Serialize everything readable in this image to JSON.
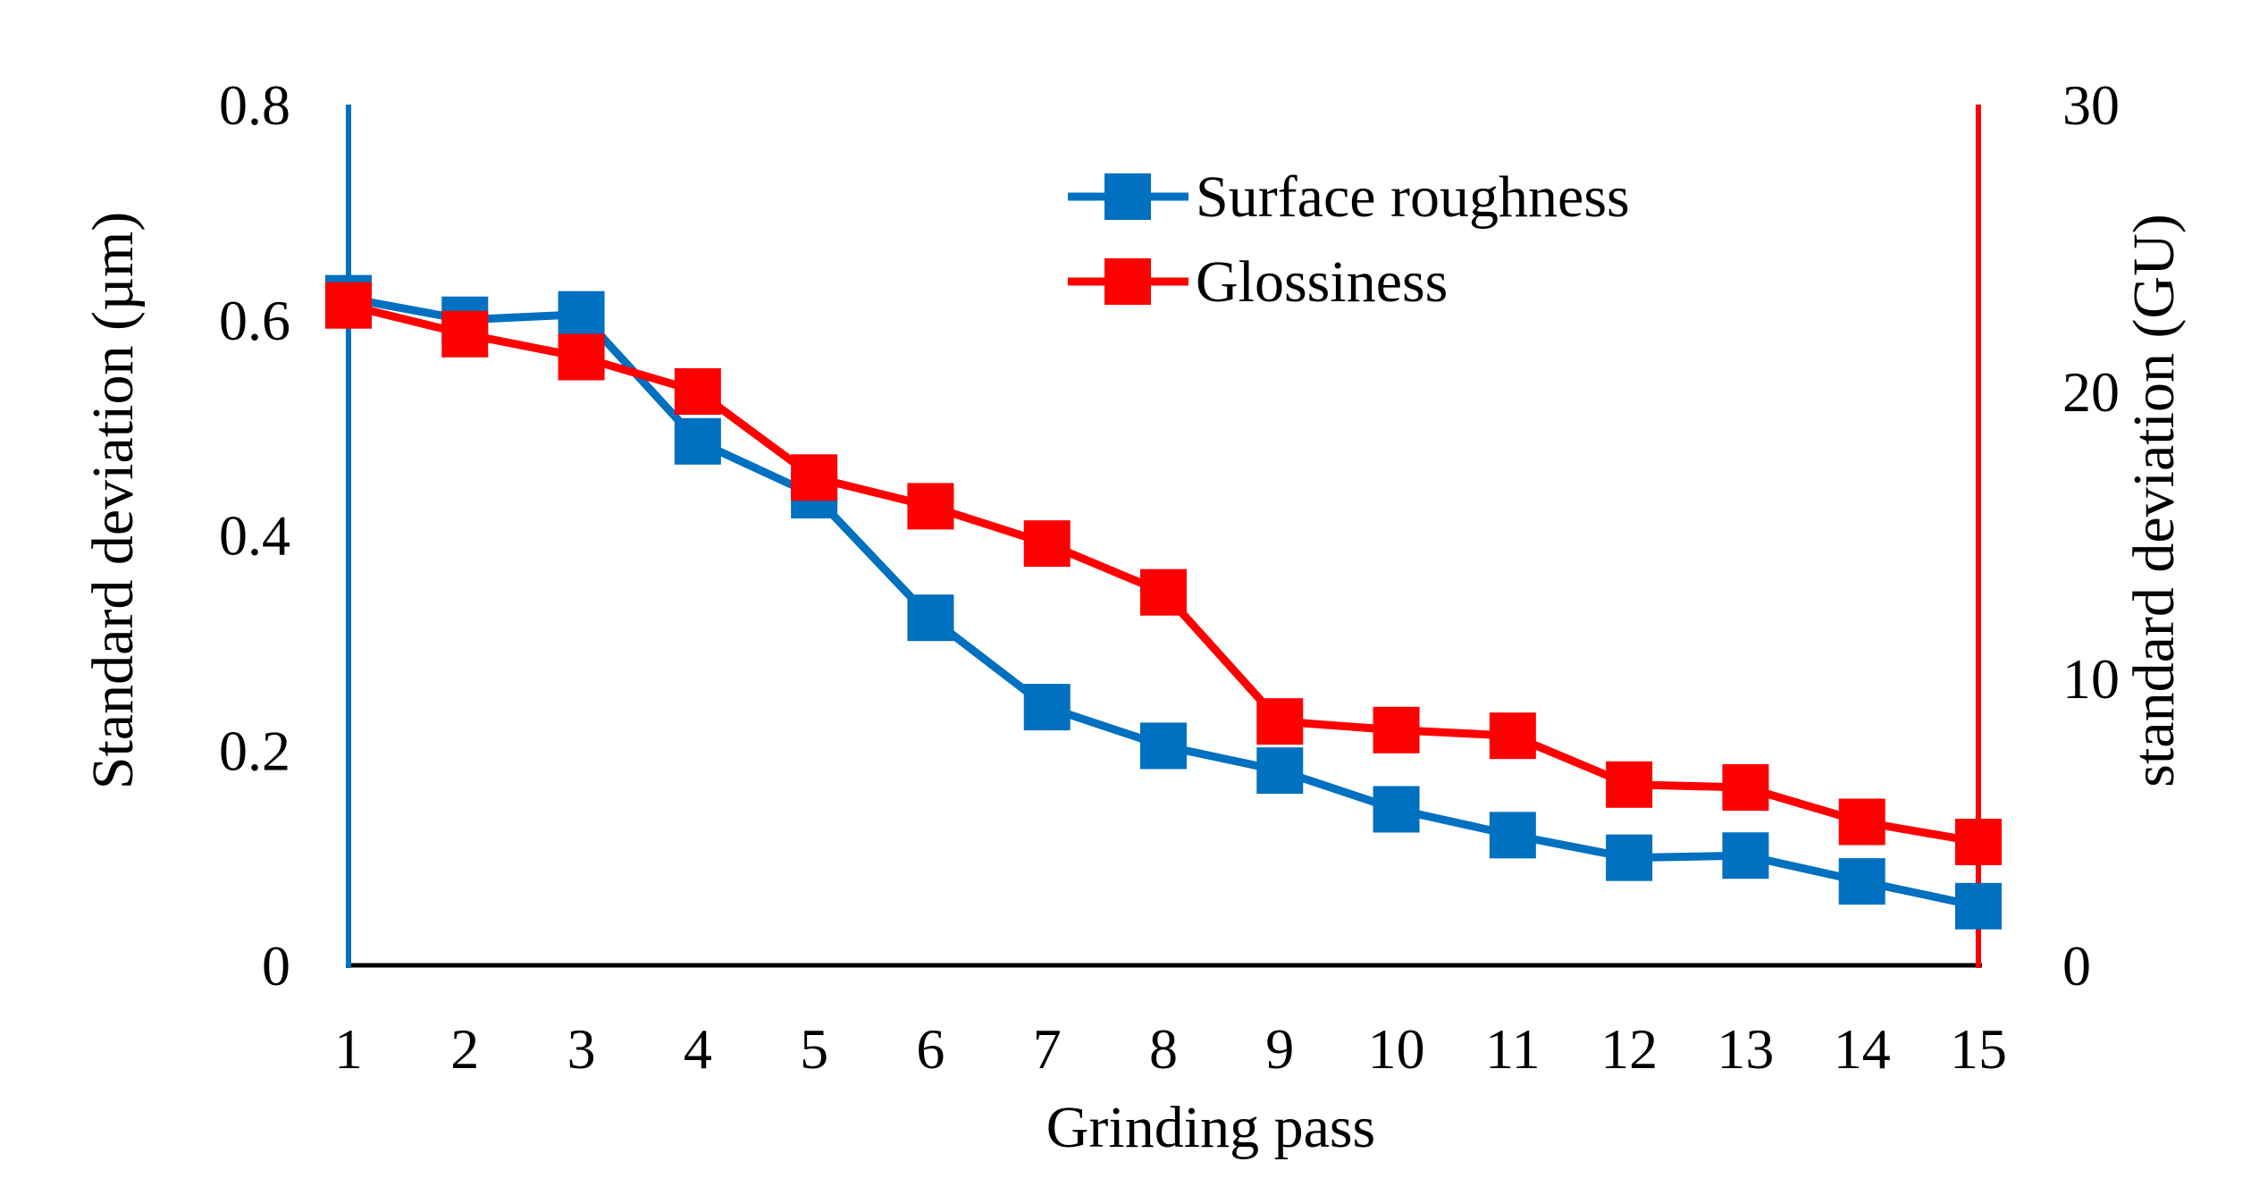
{
  "chart_data": {
    "type": "line",
    "xlabel": "Grinding pass",
    "ylabel_left": "Standard deviation (µm)",
    "ylabel_right": "standard deviation (GU)",
    "x": [
      1,
      2,
      3,
      4,
      5,
      6,
      7,
      8,
      9,
      10,
      11,
      12,
      13,
      14,
      15
    ],
    "y_left_lim": [
      0,
      0.8
    ],
    "y_left_ticks": [
      "0",
      "0.2",
      "0.4",
      "0.6",
      "0.8"
    ],
    "y_right_lim": [
      0,
      30
    ],
    "y_right_ticks": [
      "0",
      "10",
      "20",
      "30"
    ],
    "legend_position": "top-right",
    "grid": false,
    "series": [
      {
        "name": "Surface roughness",
        "axis": "left",
        "color": "#0070C0",
        "marker": "square",
        "values": [
          0.62,
          0.6,
          0.605,
          0.487,
          0.437,
          0.323,
          0.24,
          0.204,
          0.181,
          0.145,
          0.121,
          0.1,
          0.102,
          0.078,
          0.055
        ]
      },
      {
        "name": "Glossiness",
        "axis": "right",
        "color": "#FF0000",
        "marker": "square",
        "values": [
          23.0,
          22.0,
          21.2,
          20.0,
          17.0,
          16.0,
          14.7,
          13.0,
          8.5,
          8.2,
          8.0,
          6.3,
          6.2,
          5.0,
          4.3
        ]
      }
    ]
  }
}
